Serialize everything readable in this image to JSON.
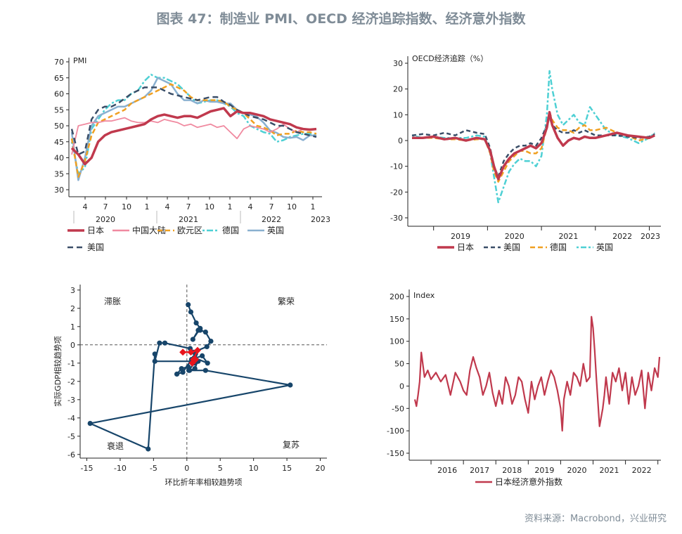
{
  "figure": {
    "title": "图表 47：制造业 PMI、OECD 经济追踪指数、经济意外指数",
    "source": "资料来源：Macrobond，兴业研究"
  },
  "chart_data": [
    {
      "id": "pmi",
      "type": "line",
      "title": "PMI",
      "ylim": [
        30,
        70
      ],
      "yticks": [
        30,
        35,
        40,
        45,
        50,
        55,
        60,
        65,
        70
      ],
      "x_tick_labels": [
        "4",
        "7",
        "10",
        "1",
        "4",
        "7",
        "10",
        "1",
        "4",
        "7",
        "10",
        "1"
      ],
      "x_year_labels": [
        "2020",
        "2021",
        "2022",
        "2023"
      ],
      "x_months": 38,
      "series": [
        {
          "name": "日本",
          "color": "#c0394d",
          "dash": "",
          "width": 3.5,
          "values": [
            43,
            41,
            38,
            40,
            45,
            47,
            48,
            48.5,
            49,
            49.5,
            50,
            50.5,
            52,
            53,
            53.5,
            53,
            52.5,
            53,
            53,
            52.5,
            53.5,
            54.5,
            55,
            55.5,
            53,
            54.5,
            54,
            54,
            53.5,
            53,
            52,
            51.5,
            51,
            50.5,
            49.5,
            49,
            48.8,
            49
          ]
        },
        {
          "name": "中国大陆",
          "color": "#f08aa0",
          "dash": "",
          "width": 1.8,
          "values": [
            41,
            50,
            50.5,
            51,
            51,
            51.5,
            51.5,
            52,
            52.5,
            51.5,
            51,
            51,
            51.5,
            51,
            52,
            51.5,
            51,
            50,
            50.5,
            49.5,
            50,
            50.5,
            49.5,
            50,
            48,
            46,
            49,
            50,
            49.5,
            49,
            48,
            49,
            50.5,
            49,
            48,
            49,
            49,
            49
          ]
        },
        {
          "name": "欧元区",
          "color": "#f0a021",
          "dash": "7,4",
          "width": 2.5,
          "values": [
            46,
            34,
            39,
            47,
            51,
            52,
            53,
            54,
            55,
            57,
            58,
            59,
            60,
            61,
            62,
            63,
            62,
            61,
            59,
            58,
            58,
            58,
            58,
            57.5,
            56,
            55,
            54,
            52,
            50,
            49.5,
            48.5,
            47,
            47.5,
            47.5,
            48.5,
            48,
            48,
            47.5
          ]
        },
        {
          "name": "德国",
          "color": "#4ed0d4",
          "dash": "3,3,9,3",
          "width": 2.5,
          "values": [
            45,
            35,
            37,
            49,
            52,
            55,
            57,
            58,
            58,
            60,
            61,
            64,
            66,
            65,
            65,
            64,
            63,
            61,
            59,
            57,
            57.5,
            58,
            58,
            57,
            56,
            54,
            53,
            50,
            49,
            48,
            47.5,
            45,
            45.5,
            46.5,
            47,
            47.5,
            47.5,
            47
          ]
        },
        {
          "name": "英国",
          "color": "#8ab0d0",
          "dash": "",
          "width": 2.5,
          "values": [
            48,
            33,
            40,
            50,
            53,
            54,
            55,
            56,
            56,
            57,
            58,
            59,
            61,
            65,
            64,
            63,
            60,
            58,
            58,
            57,
            58,
            57.5,
            57.5,
            57,
            57,
            55,
            54,
            53.5,
            52.8,
            51,
            48.5,
            47.8,
            46.5,
            46.2,
            46.5,
            45.5,
            47,
            47
          ]
        },
        {
          "name": "美国",
          "color": "#3a4e68",
          "dash": "8,5",
          "width": 2.5,
          "values": [
            49,
            41,
            42,
            52,
            55,
            56,
            56,
            57,
            58.5,
            60,
            61,
            62,
            62,
            62,
            61,
            60,
            59.5,
            59,
            58.5,
            58,
            58.5,
            59,
            59,
            57.5,
            56.5,
            55,
            54,
            53,
            52.5,
            52,
            51,
            50,
            50,
            49,
            48,
            47.5,
            47,
            46.5
          ]
        }
      ]
    },
    {
      "id": "oecd",
      "type": "line",
      "title": "OECD经济追踪（%）",
      "ylim": [
        -30,
        30
      ],
      "yticks": [
        -30,
        -20,
        -10,
        0,
        10,
        20,
        30
      ],
      "x_year_labels": [
        "2019",
        "2020",
        "2021",
        "2022",
        "2023"
      ],
      "x_range": [
        2018.6,
        2023.15
      ],
      "series": [
        {
          "name": "日本",
          "color": "#c0394d",
          "dash": "",
          "width": 3.5,
          "x": [
            2018.6,
            2018.8,
            2019.0,
            2019.2,
            2019.4,
            2019.6,
            2019.8,
            2019.95,
            2020.05,
            2020.12,
            2020.2,
            2020.3,
            2020.4,
            2020.5,
            2020.6,
            2020.7,
            2020.8,
            2020.9,
            2021.0,
            2021.1,
            2021.15,
            2021.2,
            2021.3,
            2021.4,
            2021.5,
            2021.6,
            2021.7,
            2021.8,
            2021.9,
            2022.0,
            2022.2,
            2022.4,
            2022.6,
            2022.8,
            2023.0,
            2023.1
          ],
          "values": [
            1,
            1,
            1.5,
            0.5,
            1,
            0,
            1,
            0.5,
            -4,
            -10,
            -15,
            -10,
            -7,
            -5,
            -4,
            -3,
            -2,
            -3,
            -1,
            5,
            11,
            6,
            1,
            -2,
            0,
            1,
            0.5,
            1.5,
            1,
            1,
            2,
            3,
            2,
            1.5,
            1,
            2
          ]
        },
        {
          "name": "美国",
          "color": "#3a4e68",
          "dash": "6,4",
          "width": 2.5,
          "x": [
            2018.6,
            2018.8,
            2019.0,
            2019.2,
            2019.4,
            2019.6,
            2019.8,
            2019.95,
            2020.05,
            2020.12,
            2020.2,
            2020.3,
            2020.4,
            2020.5,
            2020.6,
            2020.7,
            2020.8,
            2020.9,
            2021.0,
            2021.1,
            2021.15,
            2021.2,
            2021.3,
            2021.4,
            2021.5,
            2021.6,
            2021.7,
            2021.8,
            2021.9,
            2022.0,
            2022.2,
            2022.4,
            2022.6,
            2022.8,
            2023.0,
            2023.1
          ],
          "values": [
            2,
            2.5,
            2,
            3,
            2,
            4,
            3,
            2.5,
            -3,
            -10,
            -14,
            -8,
            -5,
            -3,
            -2,
            -2,
            -1,
            -2,
            1,
            6,
            9,
            6,
            4,
            3,
            3,
            4,
            3,
            4,
            3,
            2,
            2,
            2,
            1.5,
            1,
            1.5,
            2.5
          ]
        },
        {
          "name": "德国",
          "color": "#f0a021",
          "dash": "7,4",
          "width": 2.5,
          "x": [
            2018.6,
            2018.8,
            2019.0,
            2019.2,
            2019.4,
            2019.6,
            2019.8,
            2019.95,
            2020.05,
            2020.12,
            2020.2,
            2020.3,
            2020.4,
            2020.5,
            2020.6,
            2020.7,
            2020.8,
            2020.9,
            2021.0,
            2021.1,
            2021.15,
            2021.2,
            2021.3,
            2021.4,
            2021.5,
            2021.6,
            2021.7,
            2021.8,
            2021.9,
            2022.0,
            2022.2,
            2022.4,
            2022.6,
            2022.8,
            2023.0,
            2023.1
          ],
          "values": [
            1,
            1,
            1,
            0.5,
            0.5,
            0,
            0.5,
            0.5,
            -5,
            -12,
            -16,
            -12,
            -8,
            -6,
            -4,
            -4,
            -5,
            -5,
            -3,
            5,
            11,
            8,
            5,
            4,
            4,
            3,
            5,
            6,
            4,
            4,
            5,
            3,
            2,
            0,
            1,
            2
          ]
        },
        {
          "name": "英国",
          "color": "#4ed0d4",
          "dash": "3,3,8,3",
          "width": 2.5,
          "x": [
            2018.6,
            2018.8,
            2019.0,
            2019.2,
            2019.4,
            2019.6,
            2019.8,
            2019.95,
            2020.05,
            2020.12,
            2020.2,
            2020.3,
            2020.4,
            2020.5,
            2020.6,
            2020.7,
            2020.8,
            2020.9,
            2021.0,
            2021.1,
            2021.15,
            2021.2,
            2021.3,
            2021.4,
            2021.5,
            2021.6,
            2021.7,
            2021.8,
            2021.9,
            2022.0,
            2022.2,
            2022.4,
            2022.6,
            2022.8,
            2023.0,
            2023.1
          ],
          "values": [
            2,
            1,
            1.5,
            1,
            1,
            1,
            2,
            1.5,
            -5,
            -14,
            -24,
            -18,
            -12,
            -9,
            -7,
            -8,
            -8,
            -10,
            -6,
            10,
            27,
            20,
            10,
            6,
            8,
            10,
            7,
            6,
            13,
            10,
            4,
            2,
            1,
            -1,
            1,
            3
          ]
        }
      ]
    },
    {
      "id": "clock",
      "type": "scatter",
      "xlabel": "环比折年率相较趋势项",
      "ylabel": "实际GDP相较趋势项",
      "xlim": [
        -16,
        21
      ],
      "ylim": [
        -6.2,
        3.3
      ],
      "xticks": [
        -15,
        -10,
        -5,
        0,
        5,
        10,
        15,
        20
      ],
      "yticks": [
        -6,
        -5,
        -4,
        -3,
        -2,
        -1,
        0,
        1,
        2,
        3
      ],
      "quadrant_labels": {
        "top_left": "滞胀",
        "top_right": "繁荣",
        "bottom_left": "衰退",
        "bottom_right": "复苏"
      },
      "path_series": {
        "color": "#17456a",
        "x": [
          -4.8,
          -5.8,
          -14.5,
          15.5,
          2.8,
          0.3,
          1.1,
          1.1,
          3.1,
          2.3,
          0.7,
          -0.6,
          -1.5,
          -0.8,
          0.2,
          0.4,
          1.2,
          1.6,
          1.3,
          0.5,
          -3.3,
          -4.1,
          -4.8,
          1.7,
          1.0,
          3.0,
          3.6,
          2.8,
          2.0,
          1.7,
          0.9,
          2.0,
          1.4,
          0.6,
          0.2
        ],
        "y": [
          -0.5,
          -5.7,
          -4.3,
          -2.2,
          -1.4,
          -1.4,
          -1.0,
          -0.7,
          -1.0,
          -0.6,
          -0.8,
          -1.5,
          -1.6,
          -1.3,
          -1.2,
          -1.4,
          -1.3,
          -0.9,
          -0.5,
          -0.2,
          0.1,
          0.1,
          -0.9,
          -0.9,
          -0.4,
          -0.1,
          0.2,
          0.7,
          0.8,
          0.8,
          0.3,
          0.9,
          1.2,
          1.8,
          2.2
        ]
      },
      "highlight_series": {
        "color": "#e8141c",
        "x": [
          0.8,
          1.3,
          1.0,
          1.6,
          0.6,
          -0.6
        ],
        "y": [
          -1.0,
          -0.8,
          -0.8,
          -0.3,
          -0.4,
          -0.4
        ]
      }
    },
    {
      "id": "surprise",
      "type": "line",
      "title": "Index",
      "ylim": [
        -150,
        200
      ],
      "yticks": [
        -150,
        -100,
        -50,
        0,
        50,
        100,
        150,
        200
      ],
      "x_year_labels": [
        "2016",
        "2017",
        "2018",
        "2019",
        "2020",
        "2021",
        "2022"
      ],
      "x_range": [
        2015.5,
        2023.05
      ],
      "series": [
        {
          "name": "日本经济意外指数",
          "color": "#c0394d",
          "width": 2.2,
          "x": [
            2015.5,
            2015.55,
            2015.6,
            2015.65,
            2015.7,
            2015.8,
            2015.9,
            2016.0,
            2016.15,
            2016.3,
            2016.45,
            2016.6,
            2016.75,
            2016.9,
            2017.0,
            2017.1,
            2017.2,
            2017.3,
            2017.4,
            2017.5,
            2017.6,
            2017.7,
            2017.8,
            2017.9,
            2018.0,
            2018.1,
            2018.2,
            2018.3,
            2018.4,
            2018.5,
            2018.6,
            2018.7,
            2018.8,
            2018.9,
            2019.0,
            2019.1,
            2019.2,
            2019.3,
            2019.4,
            2019.5,
            2019.6,
            2019.7,
            2019.8,
            2019.9,
            2020.0,
            2020.05,
            2020.1,
            2020.2,
            2020.3,
            2020.4,
            2020.5,
            2020.6,
            2020.7,
            2020.8,
            2020.9,
            2020.95,
            2021.0,
            2021.05,
            2021.1,
            2021.2,
            2021.3,
            2021.35,
            2021.4,
            2021.5,
            2021.6,
            2021.7,
            2021.8,
            2021.9,
            2022.0,
            2022.1,
            2022.2,
            2022.3,
            2022.4,
            2022.5,
            2022.6,
            2022.7,
            2022.8,
            2022.9,
            2023.0,
            2023.05
          ],
          "values": [
            -30,
            -45,
            -20,
            10,
            75,
            20,
            35,
            15,
            30,
            10,
            25,
            -20,
            30,
            10,
            -10,
            -20,
            35,
            65,
            40,
            20,
            -20,
            0,
            30,
            -15,
            -45,
            -10,
            -40,
            20,
            0,
            -40,
            -20,
            20,
            10,
            -30,
            -60,
            10,
            -30,
            0,
            20,
            -20,
            10,
            35,
            20,
            -10,
            -50,
            -100,
            -30,
            10,
            -20,
            30,
            20,
            0,
            50,
            10,
            20,
            155,
            130,
            80,
            20,
            -90,
            -50,
            -20,
            20,
            -40,
            30,
            10,
            40,
            -10,
            30,
            -40,
            20,
            -20,
            0,
            35,
            -50,
            30,
            -10,
            40,
            20,
            65
          ]
        }
      ]
    }
  ]
}
